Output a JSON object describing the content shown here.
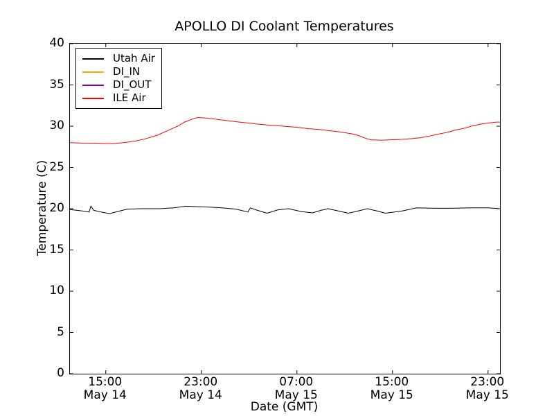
{
  "chart_data": {
    "type": "line",
    "title": "APOLLO DI Coolant Temperatures",
    "xlabel": "Date (GMT)",
    "ylabel": "Temperature (C)",
    "background_color": "#ffffff",
    "spine_color": "#000000",
    "grid": false,
    "legend_position": "upper left",
    "ylim": [
      0,
      40
    ],
    "yticks": [
      0,
      5,
      10,
      15,
      20,
      25,
      30,
      35,
      40
    ],
    "x_unit": "hours since May 14 12:00 GMT",
    "xlim_hours": [
      0,
      36
    ],
    "xticks": [
      {
        "h": 3,
        "time": "15:00",
        "date": "May 14"
      },
      {
        "h": 11,
        "time": "23:00",
        "date": "May 14"
      },
      {
        "h": 19,
        "time": "07:00",
        "date": "May 15"
      },
      {
        "h": 27,
        "time": "15:00",
        "date": "May 15"
      },
      {
        "h": 35,
        "time": "23:00",
        "date": "May 15"
      }
    ],
    "series": [
      {
        "name": "Utah Air",
        "color": "#000000",
        "points": [
          [
            0,
            19.9
          ],
          [
            0.6,
            19.8
          ],
          [
            1.2,
            19.7
          ],
          [
            1.6,
            19.6
          ],
          [
            1.75,
            20.3
          ],
          [
            2.0,
            19.8
          ],
          [
            2.6,
            19.6
          ],
          [
            3.3,
            19.4
          ],
          [
            4.1,
            19.7
          ],
          [
            4.8,
            19.95
          ],
          [
            6.0,
            20.0
          ],
          [
            7.5,
            20.0
          ],
          [
            8.7,
            20.1
          ],
          [
            9.7,
            20.3
          ],
          [
            10.5,
            20.25
          ],
          [
            11.6,
            20.2
          ],
          [
            12.7,
            20.1
          ],
          [
            13.9,
            19.95
          ],
          [
            14.9,
            19.6
          ],
          [
            15.1,
            20.1
          ],
          [
            15.7,
            19.8
          ],
          [
            16.5,
            19.45
          ],
          [
            17.4,
            19.85
          ],
          [
            18.3,
            20.0
          ],
          [
            19.4,
            19.65
          ],
          [
            20.3,
            19.5
          ],
          [
            21.0,
            19.8
          ],
          [
            21.6,
            20.0
          ],
          [
            22.4,
            19.75
          ],
          [
            23.3,
            19.45
          ],
          [
            24.2,
            19.75
          ],
          [
            24.9,
            20.0
          ],
          [
            25.8,
            19.7
          ],
          [
            26.4,
            19.45
          ],
          [
            27.2,
            19.6
          ],
          [
            27.9,
            19.75
          ],
          [
            29.0,
            20.1
          ],
          [
            30.5,
            20.05
          ],
          [
            32.0,
            20.05
          ],
          [
            33.5,
            20.1
          ],
          [
            35.0,
            20.1
          ],
          [
            36.0,
            20.0
          ]
        ]
      },
      {
        "name": "DI_IN",
        "color": "#ffa500",
        "points": []
      },
      {
        "name": "DI_OUT",
        "color": "#800080",
        "points": []
      },
      {
        "name": "ILE Air",
        "color": "#ff0000",
        "points": [
          [
            0,
            28.0
          ],
          [
            1.0,
            27.95
          ],
          [
            2.0,
            27.95
          ],
          [
            3.0,
            27.9
          ],
          [
            3.6,
            27.9
          ],
          [
            4.5,
            28.0
          ],
          [
            5.5,
            28.2
          ],
          [
            6.4,
            28.5
          ],
          [
            7.3,
            28.9
          ],
          [
            8.1,
            29.4
          ],
          [
            9.0,
            30.0
          ],
          [
            9.6,
            30.5
          ],
          [
            10.3,
            30.9
          ],
          [
            10.7,
            31.05
          ],
          [
            11.3,
            31.0
          ],
          [
            11.6,
            30.95
          ],
          [
            12.2,
            30.85
          ],
          [
            12.75,
            30.75
          ],
          [
            13.6,
            30.6
          ],
          [
            14.2,
            30.5
          ],
          [
            15.1,
            30.35
          ],
          [
            15.7,
            30.25
          ],
          [
            16.5,
            30.15
          ],
          [
            17.4,
            30.05
          ],
          [
            18.3,
            29.95
          ],
          [
            19.1,
            29.85
          ],
          [
            20.0,
            29.7
          ],
          [
            20.9,
            29.6
          ],
          [
            21.7,
            29.45
          ],
          [
            22.6,
            29.3
          ],
          [
            23.5,
            29.1
          ],
          [
            24.1,
            28.9
          ],
          [
            24.8,
            28.5
          ],
          [
            25.2,
            28.35
          ],
          [
            26.1,
            28.3
          ],
          [
            26.9,
            28.35
          ],
          [
            27.8,
            28.4
          ],
          [
            28.7,
            28.5
          ],
          [
            29.3,
            28.6
          ],
          [
            30.1,
            28.8
          ],
          [
            30.7,
            29.0
          ],
          [
            31.6,
            29.25
          ],
          [
            32.2,
            29.5
          ],
          [
            33.0,
            29.75
          ],
          [
            33.6,
            30.0
          ],
          [
            34.4,
            30.25
          ],
          [
            35.1,
            30.4
          ],
          [
            35.7,
            30.5
          ],
          [
            36.0,
            30.5
          ]
        ]
      }
    ]
  }
}
